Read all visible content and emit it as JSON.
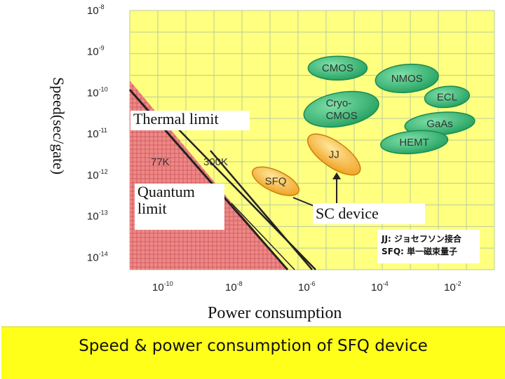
{
  "chart_data": {
    "type": "scatter",
    "x_scale": "log",
    "y_scale": "log",
    "xlabel": "Power consumption",
    "ylabel": "Speed(sec/gate)",
    "title": "Speed & power consumption of SFQ device",
    "y_ticks": [
      {
        "base": "10",
        "exp": "-8"
      },
      {
        "base": "10",
        "exp": "-9"
      },
      {
        "base": "10",
        "exp": "-10"
      },
      {
        "base": "10",
        "exp": "-11"
      },
      {
        "base": "10",
        "exp": "-12"
      },
      {
        "base": "10",
        "exp": "-13"
      },
      {
        "base": "10",
        "exp": "-14"
      }
    ],
    "x_ticks": [
      {
        "base": "10",
        "exp": "-10"
      },
      {
        "base": "10",
        "exp": "-8"
      },
      {
        "base": "10",
        "exp": "-6"
      },
      {
        "base": "10",
        "exp": "-4"
      },
      {
        "base": "10",
        "exp": "-2"
      }
    ],
    "devices": [
      {
        "label": "CMOS",
        "log_power": -5.3,
        "log_speed": -9.4,
        "group": "semiconductor"
      },
      {
        "label": "NMOS",
        "log_power": -3.4,
        "log_speed": -9.65,
        "group": "semiconductor"
      },
      {
        "label": "ECL",
        "log_power": -2.3,
        "log_speed": -10.1,
        "group": "semiconductor"
      },
      {
        "label": "Cryo-CMOS",
        "log_power": -5.2,
        "log_speed": -10.4,
        "group": "semiconductor"
      },
      {
        "label": "GaAs",
        "log_power": -2.5,
        "log_speed": -10.75,
        "group": "semiconductor"
      },
      {
        "label": "HEMT",
        "log_power": -3.2,
        "log_speed": -11.2,
        "group": "semiconductor"
      },
      {
        "label": "JJ",
        "log_power": -5.4,
        "log_speed": -11.5,
        "group": "superconductor"
      },
      {
        "label": "SFQ",
        "log_power": -7.0,
        "log_speed": -12.15,
        "group": "superconductor"
      }
    ],
    "limits": [
      {
        "label": "77K",
        "type": "thermal"
      },
      {
        "label": "300K",
        "type": "thermal"
      }
    ],
    "annotations": {
      "thermal": "Thermal limit",
      "quantum_line1": "Quantum",
      "quantum_line2": "limit",
      "sc_device": "SC device"
    },
    "legend_lines": [
      "JJ: ジョセフソン接合",
      "SFQ: 単一磁束量子"
    ]
  },
  "colors": {
    "plot_bg": "#ffff80",
    "grid": "#b8cd99",
    "forbidden": "#ee8888",
    "green_bubble": "#3cb878",
    "orange_bubble": "#f5b940",
    "footer_bg": "#ffff1a"
  }
}
